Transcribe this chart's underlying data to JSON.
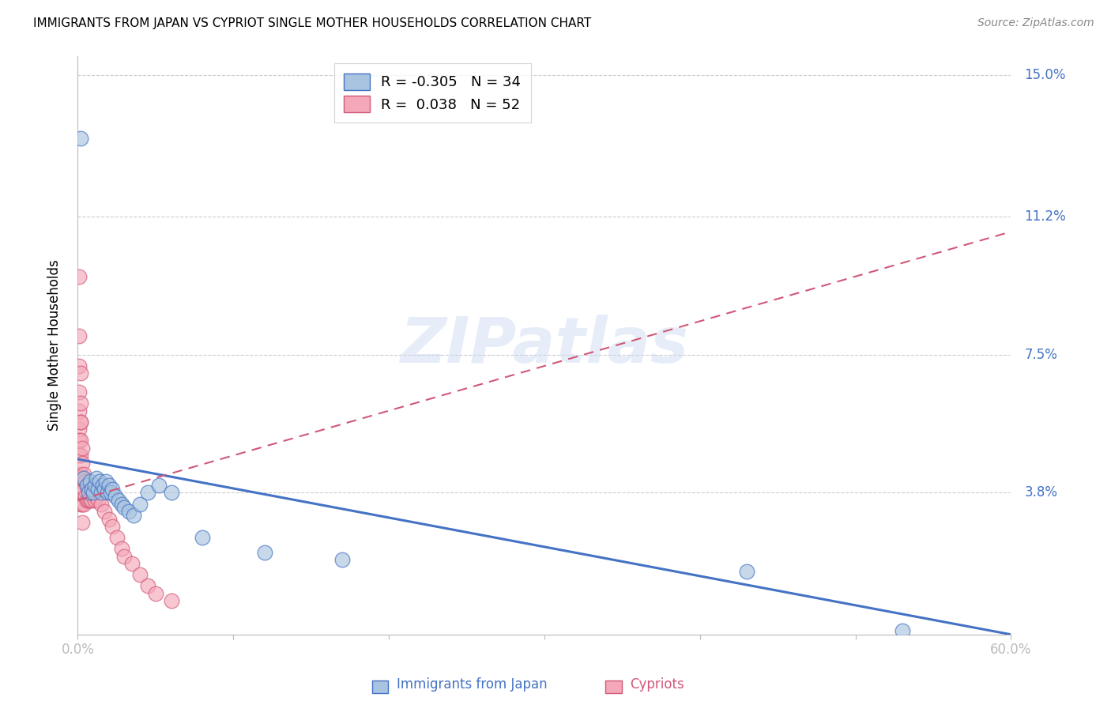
{
  "title": "IMMIGRANTS FROM JAPAN VS CYPRIOT SINGLE MOTHER HOUSEHOLDS CORRELATION CHART",
  "source": "Source: ZipAtlas.com",
  "xlabel_japan": "Immigrants from Japan",
  "xlabel_cypriot": "Cypriots",
  "ylabel": "Single Mother Households",
  "xlim": [
    0.0,
    0.6
  ],
  "ylim": [
    0.0,
    0.155
  ],
  "yticks": [
    0.0,
    0.038,
    0.075,
    0.112,
    0.15
  ],
  "ytick_labels": [
    "",
    "3.8%",
    "7.5%",
    "11.2%",
    "15.0%"
  ],
  "xticks": [
    0.0,
    0.1,
    0.2,
    0.3,
    0.4,
    0.5,
    0.6
  ],
  "xtick_labels": [
    "0.0%",
    "",
    "",
    "",
    "",
    "",
    "60.0%"
  ],
  "legend_R_japan": "-0.305",
  "legend_N_japan": "34",
  "legend_R_cypriot": "0.038",
  "legend_N_cypriot": "52",
  "color_japan": "#a8c4e0",
  "color_japan_line": "#4472c4",
  "color_cypriot": "#f4a8b8",
  "color_cypriot_line": "#d05878",
  "color_axis_labels": "#4472c4",
  "watermark_text": "ZIPatlas",
  "japan_scatter_x": [
    0.002,
    0.004,
    0.006,
    0.007,
    0.008,
    0.009,
    0.01,
    0.011,
    0.012,
    0.013,
    0.014,
    0.015,
    0.016,
    0.017,
    0.018,
    0.019,
    0.02,
    0.021,
    0.022,
    0.024,
    0.026,
    0.028,
    0.03,
    0.033,
    0.036,
    0.04,
    0.045,
    0.052,
    0.06,
    0.08,
    0.12,
    0.17,
    0.43,
    0.53
  ],
  "japan_scatter_y": [
    0.133,
    0.042,
    0.04,
    0.038,
    0.041,
    0.039,
    0.038,
    0.04,
    0.042,
    0.039,
    0.041,
    0.038,
    0.04,
    0.039,
    0.041,
    0.038,
    0.04,
    0.038,
    0.039,
    0.037,
    0.036,
    0.035,
    0.034,
    0.033,
    0.032,
    0.035,
    0.038,
    0.04,
    0.038,
    0.026,
    0.022,
    0.02,
    0.017,
    0.001
  ],
  "cypriot_scatter_x": [
    0.001,
    0.001,
    0.001,
    0.001,
    0.001,
    0.001,
    0.001,
    0.001,
    0.002,
    0.002,
    0.002,
    0.002,
    0.002,
    0.002,
    0.002,
    0.002,
    0.003,
    0.003,
    0.003,
    0.003,
    0.003,
    0.003,
    0.004,
    0.004,
    0.004,
    0.005,
    0.005,
    0.006,
    0.006,
    0.007,
    0.007,
    0.008,
    0.008,
    0.009,
    0.01,
    0.011,
    0.012,
    0.013,
    0.015,
    0.017,
    0.02,
    0.022,
    0.025,
    0.028,
    0.03,
    0.035,
    0.04,
    0.045,
    0.05,
    0.06,
    0.001,
    0.002
  ],
  "cypriot_scatter_y": [
    0.08,
    0.072,
    0.065,
    0.06,
    0.055,
    0.052,
    0.048,
    0.042,
    0.062,
    0.057,
    0.052,
    0.048,
    0.043,
    0.041,
    0.057,
    0.035,
    0.05,
    0.046,
    0.042,
    0.038,
    0.035,
    0.03,
    0.043,
    0.039,
    0.035,
    0.041,
    0.037,
    0.04,
    0.036,
    0.039,
    0.036,
    0.039,
    0.036,
    0.036,
    0.038,
    0.036,
    0.037,
    0.036,
    0.035,
    0.033,
    0.031,
    0.029,
    0.026,
    0.023,
    0.021,
    0.019,
    0.016,
    0.013,
    0.011,
    0.009,
    0.096,
    0.07
  ],
  "japan_trend_x": [
    0.0,
    0.6
  ],
  "japan_trend_y": [
    0.047,
    0.0
  ],
  "cypriot_trend_x": [
    0.0,
    0.6
  ],
  "cypriot_trend_y": [
    0.036,
    0.108
  ]
}
